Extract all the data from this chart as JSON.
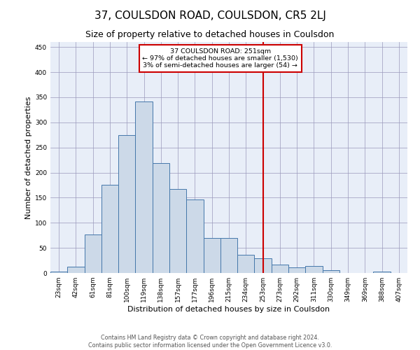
{
  "title": "37, COULSDON ROAD, COULSDON, CR5 2LJ",
  "subtitle": "Size of property relative to detached houses in Coulsdon",
  "xlabel": "Distribution of detached houses by size in Coulsdon",
  "ylabel": "Number of detached properties",
  "bar_labels": [
    "23sqm",
    "42sqm",
    "61sqm",
    "81sqm",
    "100sqm",
    "119sqm",
    "138sqm",
    "157sqm",
    "177sqm",
    "196sqm",
    "215sqm",
    "234sqm",
    "253sqm",
    "273sqm",
    "292sqm",
    "311sqm",
    "330sqm",
    "349sqm",
    "369sqm",
    "388sqm",
    "407sqm"
  ],
  "bar_heights": [
    3,
    12,
    76,
    176,
    275,
    342,
    219,
    167,
    147,
    70,
    70,
    36,
    29,
    17,
    11,
    14,
    6,
    0,
    0,
    3,
    0
  ],
  "bar_color": "#ccd9e8",
  "bar_edge_color": "#4477aa",
  "vline_color": "#cc0000",
  "vline_x_index": 12,
  "annotation_text": "37 COULSDON ROAD: 251sqm\n← 97% of detached houses are smaller (1,530)\n3% of semi-detached houses are larger (54) →",
  "annotation_box_color": "#cc0000",
  "ylim": [
    0,
    460
  ],
  "yticks": [
    0,
    50,
    100,
    150,
    200,
    250,
    300,
    350,
    400,
    450
  ],
  "footer_line1": "Contains HM Land Registry data © Crown copyright and database right 2024.",
  "footer_line2": "Contains public sector information licensed under the Open Government Licence v3.0.",
  "bg_color": "#e8eef8",
  "title_fontsize": 11,
  "subtitle_fontsize": 9,
  "axis_label_fontsize": 8,
  "tick_fontsize": 6.5,
  "footer_fontsize": 5.8
}
